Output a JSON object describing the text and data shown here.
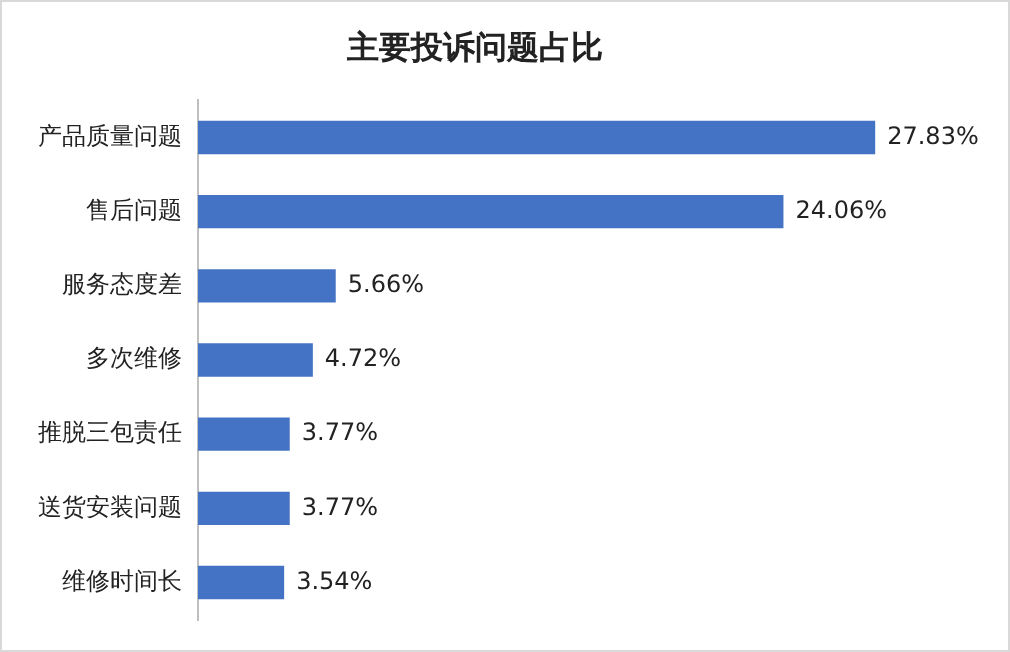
{
  "chart_data": {
    "type": "bar",
    "orientation": "horizontal",
    "title": "主要投诉问题占比",
    "categories": [
      "产品质量问题",
      "售后问题",
      "服务态度差",
      "多次维修",
      "推脱三包责任",
      "送货安装问题",
      "维修时间长"
    ],
    "values": [
      27.83,
      24.06,
      5.66,
      4.72,
      3.77,
      3.77,
      3.54
    ],
    "value_labels": [
      "27.83%",
      "24.06%",
      "5.66%",
      "4.72%",
      "3.77%",
      "3.77%",
      "3.54%"
    ],
    "color": "#4472c4",
    "legend": false,
    "tick_labels": "y"
  }
}
